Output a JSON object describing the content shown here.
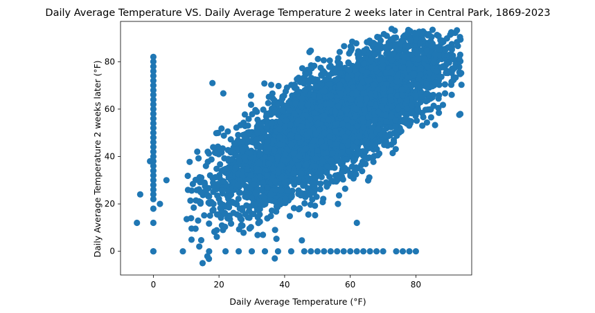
{
  "chart_data": {
    "type": "scatter",
    "title": "Daily Average Temperature VS. Daily Average Temperature 2 weeks later in Central Park, 1869-2023",
    "xlabel": "Daily Average Temperature (°F)",
    "ylabel": "Daily Average Temperature 2 weeks later (°F)",
    "xlim": [
      -10,
      97
    ],
    "ylim": [
      -10,
      97
    ],
    "xticks": [
      0,
      20,
      40,
      60,
      80
    ],
    "yticks": [
      0,
      20,
      40,
      60,
      80
    ],
    "grid": false,
    "point_color": "#1f77b4",
    "point_count_estimate": 56000,
    "correlation_estimate": 0.78,
    "x_mean": 55,
    "x_sd": 17,
    "y_mean": 55,
    "y_sd": 17,
    "main_cloud_x_range": [
      10,
      94
    ],
    "main_cloud_y_range": [
      -6,
      94
    ],
    "outlier_column": {
      "x": 0,
      "y": [
        0,
        12,
        18,
        22,
        24,
        26,
        28,
        30,
        32,
        34,
        36,
        38,
        40,
        42,
        44,
        46,
        48,
        50,
        52,
        54,
        56,
        58,
        60,
        62,
        64,
        66,
        68,
        70,
        72,
        74,
        76,
        78,
        80,
        82
      ]
    },
    "outlier_row": {
      "y": 0,
      "x": [
        0,
        9,
        17,
        22,
        26,
        30,
        34,
        38,
        42,
        46,
        48,
        50,
        52,
        54,
        56,
        58,
        60,
        62,
        64,
        66,
        68,
        70,
        74,
        76,
        78,
        80
      ]
    },
    "extra_outliers": [
      {
        "x": -5,
        "y": 12
      },
      {
        "x": -4,
        "y": 24
      },
      {
        "x": -1,
        "y": 38
      },
      {
        "x": 2,
        "y": 20
      },
      {
        "x": 4,
        "y": 30
      },
      {
        "x": 15,
        "y": -5
      },
      {
        "x": 18,
        "y": 71
      },
      {
        "x": 37,
        "y": -3
      },
      {
        "x": 62,
        "y": 12
      }
    ]
  }
}
